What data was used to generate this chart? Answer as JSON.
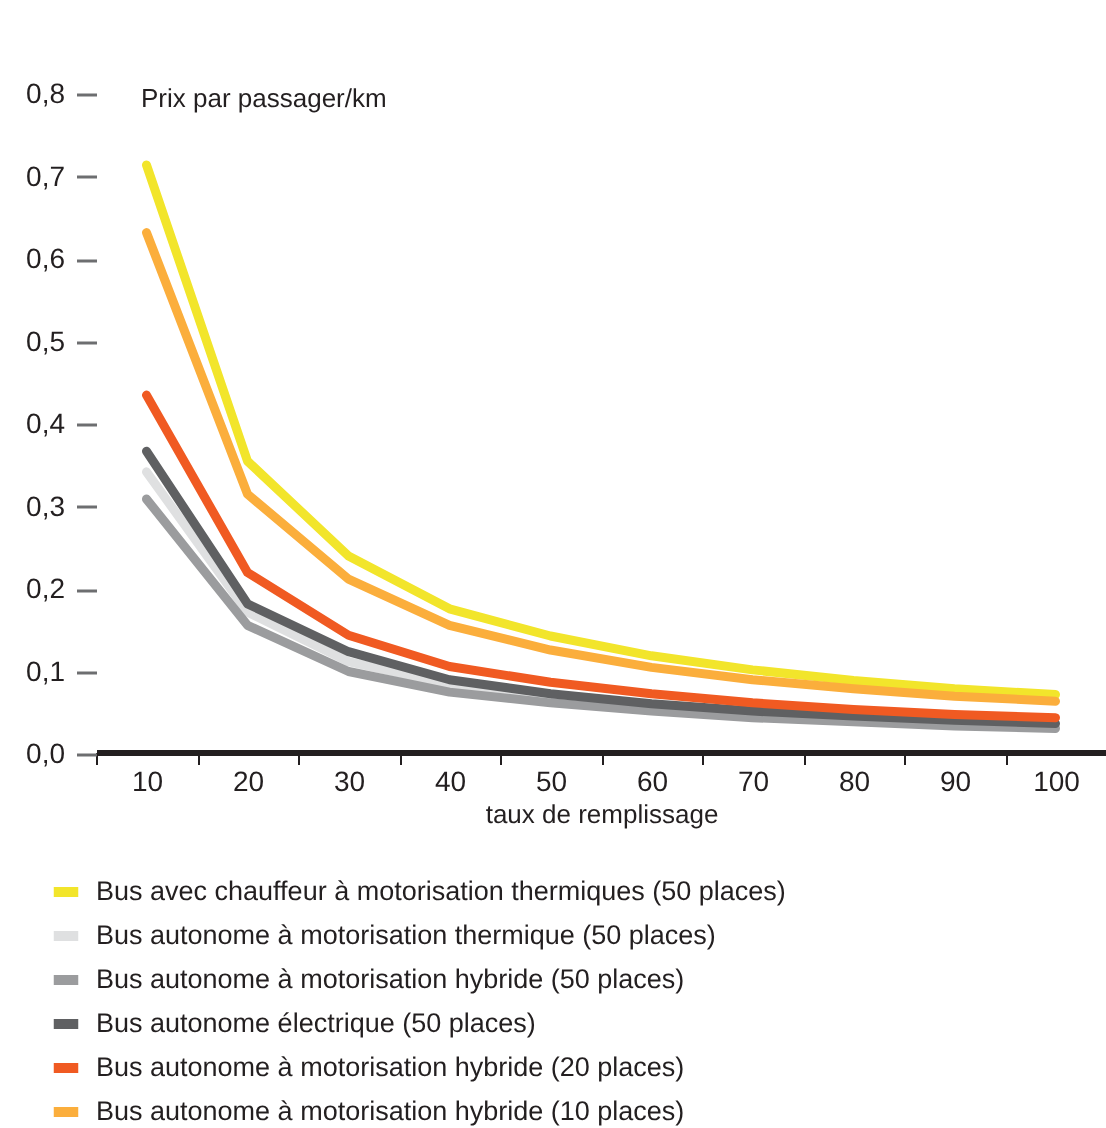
{
  "chart_data": {
    "type": "line",
    "ylabel": "Prix par passager/km",
    "xlabel": "taux de remplissage",
    "x": [
      10,
      20,
      30,
      40,
      50,
      60,
      70,
      80,
      90,
      100
    ],
    "xlim": [
      5,
      105
    ],
    "xticks": [
      {
        "value": 5,
        "label": null
      },
      10,
      {
        "value": 15,
        "label": null
      },
      20,
      {
        "value": 25,
        "label": null
      },
      30,
      {
        "value": 35,
        "label": null
      },
      40,
      {
        "value": 45,
        "label": null
      },
      50,
      {
        "value": 55,
        "label": null
      },
      60,
      {
        "value": 65,
        "label": null
      },
      70,
      {
        "value": 75,
        "label": null
      },
      80,
      {
        "value": 85,
        "label": null
      },
      90,
      {
        "value": 95,
        "label": null
      },
      100,
      {
        "value": 105,
        "label": null
      }
    ],
    "ylim": [
      0,
      0.8
    ],
    "yticks": [
      {
        "value": 0,
        "label": "0,0"
      },
      {
        "value": 0.1,
        "label": "0,1"
      },
      {
        "value": 0.2,
        "label": "0,2"
      },
      {
        "value": 0.3,
        "label": "0,3"
      },
      {
        "value": 0.4,
        "label": "0,4"
      },
      {
        "value": 0.5,
        "label": "0,5"
      },
      {
        "value": 0.6,
        "label": "0,6"
      },
      {
        "value": 0.7,
        "label": "0,7"
      },
      {
        "value": 0.8,
        "label": "0,8"
      }
    ],
    "grid": false,
    "legend": "bottom",
    "marker": "none",
    "line_style": "solid",
    "series": [
      {
        "name": "Bus avec chauffeur à motorisation thermiques (50 places)",
        "color": "#f2e52b",
        "values": [
          0.714,
          0.355,
          0.24,
          0.176,
          0.143,
          0.119,
          0.102,
          0.089,
          0.079,
          0.072
        ]
      },
      {
        "name": "Bus autonome à motorisation thermique (50 places)",
        "color": "#dfe0e1",
        "values": [
          0.342,
          0.172,
          0.112,
          0.084,
          0.068,
          0.057,
          0.049,
          0.043,
          0.038,
          0.035
        ]
      },
      {
        "name": "Bus autonome à motorisation hybride (50 places)",
        "color": "#9b9c9e",
        "values": [
          0.309,
          0.156,
          0.1,
          0.075,
          0.062,
          0.052,
          0.044,
          0.039,
          0.034,
          0.031
        ]
      },
      {
        "name": "Bus autonome électrique (50 places)",
        "color": "#5f6062",
        "values": [
          0.367,
          0.182,
          0.124,
          0.09,
          0.073,
          0.061,
          0.052,
          0.046,
          0.041,
          0.037
        ]
      },
      {
        "name": "Bus autonome à motorisation hybride (20 places)",
        "color": "#f05a22",
        "values": [
          0.435,
          0.22,
          0.144,
          0.106,
          0.087,
          0.073,
          0.062,
          0.054,
          0.048,
          0.044
        ]
      },
      {
        "name": "Bus autonome à motorisation hybride (10 places)",
        "color": "#fbae3c",
        "values": [
          0.632,
          0.315,
          0.212,
          0.156,
          0.126,
          0.105,
          0.09,
          0.079,
          0.07,
          0.064
        ]
      }
    ]
  }
}
